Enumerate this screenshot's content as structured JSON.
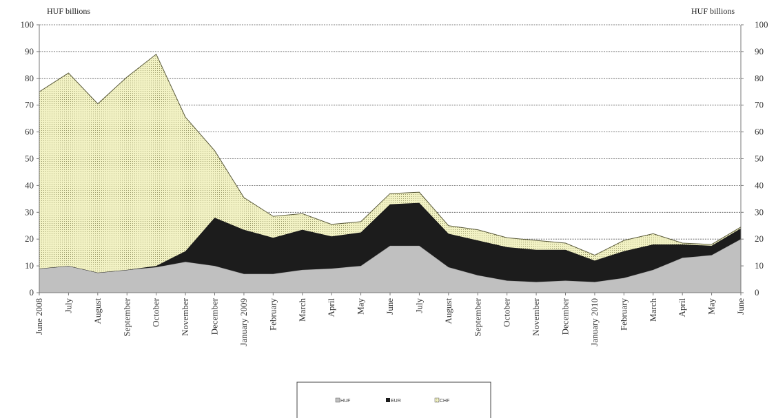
{
  "chart_data": {
    "type": "area",
    "stacked": true,
    "y_unit_left": "HUF billions",
    "y_unit_right": "HUF billions",
    "ylim": [
      0,
      100
    ],
    "yticks": [
      0,
      10,
      20,
      30,
      40,
      50,
      60,
      70,
      80,
      90,
      100
    ],
    "grid": true,
    "categories": [
      "June 2008",
      "July",
      "August",
      "September",
      "October",
      "November",
      "December",
      "January 2009",
      "February",
      "March",
      "April",
      "May",
      "June",
      "July",
      "August",
      "September",
      "October",
      "November",
      "December",
      "January 2010",
      "February",
      "March",
      "April",
      "May",
      "June"
    ],
    "series": [
      {
        "name": "HUF",
        "values": [
          9,
          10,
          7.5,
          8.5,
          9.5,
          11.5,
          10,
          7,
          7,
          8.5,
          9,
          10,
          17.5,
          17.5,
          9.5,
          6.5,
          4.5,
          4,
          4.5,
          4,
          5.5,
          8.5,
          13,
          14,
          20
        ]
      },
      {
        "name": "EUR",
        "values": [
          0,
          0,
          0,
          0,
          0.5,
          4,
          18,
          16.5,
          13.5,
          15,
          12,
          12.5,
          15.5,
          16,
          12.5,
          13,
          12.5,
          12,
          11.5,
          8,
          10,
          9.5,
          5,
          3.5,
          4
        ]
      },
      {
        "name": "CHF",
        "values": [
          66,
          72,
          63,
          72,
          79,
          50,
          25,
          12,
          8,
          6,
          4.5,
          4,
          4,
          4,
          3,
          4,
          3.5,
          3.5,
          2.5,
          2,
          4,
          4,
          0.5,
          0.5,
          0.5
        ]
      }
    ],
    "colors": {
      "HUF": "#c0c0c0",
      "EUR": "#1c1c1c",
      "CHF": "#f2f2c4",
      "CHF_dots": "#9a9a6a",
      "grid": "#555555",
      "axis": "#777777"
    },
    "legend": {
      "placement": "bottom-center",
      "labels": [
        "HUF",
        "EUR",
        "CHF"
      ]
    }
  }
}
